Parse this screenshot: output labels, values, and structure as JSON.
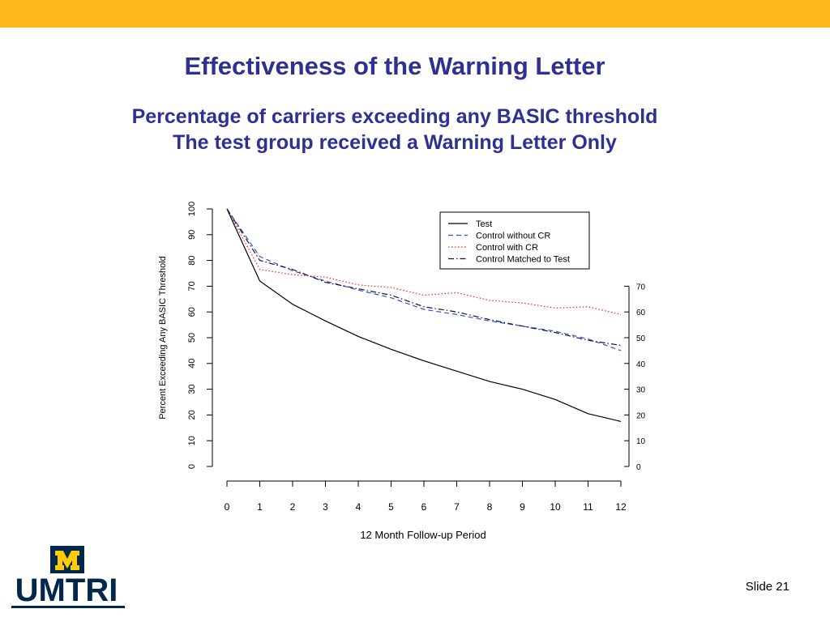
{
  "colors": {
    "top_bar": "#FFB81C",
    "title": "#2E3192",
    "maize": "#FFCB05",
    "blue": "#00274C"
  },
  "slide": {
    "title": "Effectiveness of the Warning Letter",
    "subtitle_line1": "Percentage of carriers exceeding any BASIC threshold",
    "subtitle_line2": "The test group received a Warning Letter Only",
    "logo_text": "UMTRI",
    "logo_icon": "block-m-icon",
    "slide_number": "Slide 21"
  },
  "chart_data": {
    "type": "line",
    "title": "",
    "xlabel": "12 Month Follow-up Period",
    "ylabel": "Percent Exceeding Any BASIC Threshold",
    "x": [
      0,
      1,
      2,
      3,
      4,
      5,
      6,
      7,
      8,
      9,
      10,
      11,
      12
    ],
    "xlim": [
      0,
      12
    ],
    "ylim": [
      0,
      100
    ],
    "yticks_left": [
      0,
      10,
      20,
      30,
      40,
      50,
      60,
      70,
      80,
      90,
      100
    ],
    "yticks_right": [
      0,
      10,
      20,
      30,
      40,
      50,
      60,
      70
    ],
    "xticks": [
      0,
      1,
      2,
      3,
      4,
      5,
      6,
      7,
      8,
      9,
      10,
      11,
      12
    ],
    "grid": false,
    "legend_position": "top-right",
    "series": [
      {
        "name": "Test",
        "color": "#000000",
        "dash": "solid",
        "values": [
          100,
          72,
          63,
          56.5,
          50.5,
          45.5,
          41,
          37,
          33,
          30,
          26,
          20.5,
          17.5
        ]
      },
      {
        "name": "Control without CR",
        "color": "#3355cc",
        "dash": "dashed",
        "values": [
          100,
          81.5,
          76,
          72,
          68.5,
          65.5,
          61,
          59,
          56.5,
          54.5,
          52.5,
          49.5,
          45
        ]
      },
      {
        "name": "Control with CR",
        "color": "#ee2222",
        "dash": "dotted",
        "values": [
          100,
          76.5,
          74.5,
          73.5,
          70.5,
          69.5,
          66.5,
          67.5,
          64.5,
          63.5,
          61.5,
          62,
          59
        ]
      },
      {
        "name": "Control Matched to Test",
        "color": "#111144",
        "dash": "dashdot",
        "values": [
          100,
          80,
          76.5,
          71.5,
          69,
          66.5,
          62,
          60,
          57,
          54.5,
          52,
          49,
          47
        ]
      }
    ]
  }
}
